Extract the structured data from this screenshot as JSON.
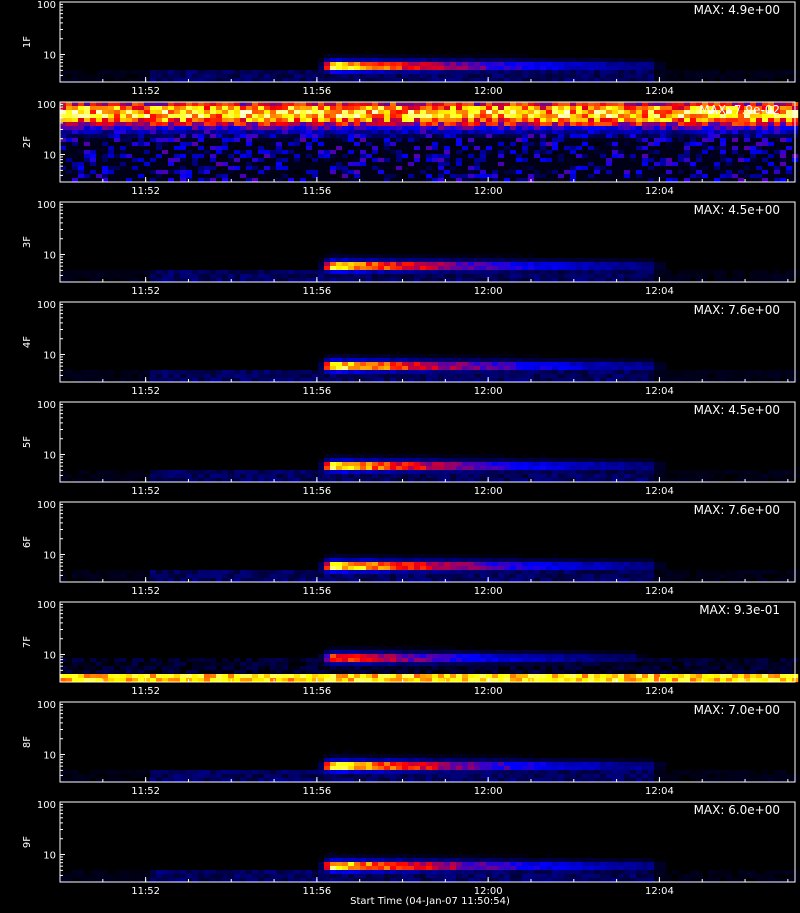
{
  "chart_data": [
    {
      "type": "heatmap",
      "ylabel": "1F",
      "max_label": "MAX: 4.9e+00",
      "xticks": [
        "11:52",
        "11:56",
        "12:00",
        "12:04"
      ],
      "yticks": [
        "10",
        "100"
      ],
      "ylim": [
        3,
        100
      ],
      "xlim": [
        "11:50:00",
        "12:07:10"
      ],
      "emission": {
        "profile": "flare",
        "onset": "11:56:00",
        "peak": "11:56:15",
        "end": "12:03:45",
        "y_center": 6,
        "peak_level": 4.9,
        "intensity_relative": 0.94
      },
      "background": {
        "mode": "quiet",
        "low_y": 3.2,
        "high_y": 5.5,
        "level": 0.04
      },
      "colors": [
        "#000000",
        "#0000ff",
        "#ff0000",
        "#ffff00",
        "#ffffff"
      ]
    },
    {
      "type": "heatmap",
      "ylabel": "2F",
      "max_label": "MAX: 7.9e-02",
      "xticks": [
        "11:52",
        "11:56",
        "12:00",
        "12:04"
      ],
      "yticks": [
        "10",
        "100"
      ],
      "ylim": [
        3,
        100
      ],
      "xlim": [
        "11:50:00",
        "12:07:10"
      ],
      "emission": {
        "profile": "uniform-high",
        "onset": "11:50:00",
        "peak": "11:50:00",
        "end": "12:07:10",
        "y_center": 60,
        "peak_level": 0.079,
        "intensity_relative": 0.78
      },
      "background": {
        "mode": "noisy-lower",
        "low_y": 3,
        "high_y": 30,
        "level": 0.28
      },
      "colors": [
        "#000000",
        "#0000ff",
        "#ff0000",
        "#ffff00",
        "#ffffff"
      ]
    },
    {
      "type": "heatmap",
      "ylabel": "3F",
      "max_label": "MAX: 4.5e+00",
      "xticks": [
        "11:52",
        "11:56",
        "12:00",
        "12:04"
      ],
      "yticks": [
        "10",
        "100"
      ],
      "ylim": [
        3,
        100
      ],
      "xlim": [
        "11:50:00",
        "12:07:10"
      ],
      "emission": {
        "profile": "flare",
        "onset": "11:56:00",
        "peak": "11:56:15",
        "end": "12:03:45",
        "y_center": 6,
        "peak_level": 4.5,
        "intensity_relative": 0.9
      },
      "background": {
        "mode": "quiet",
        "low_y": 3.2,
        "high_y": 5.5,
        "level": 0.04
      },
      "colors": [
        "#000000",
        "#0000ff",
        "#ff0000",
        "#ffff00",
        "#ffffff"
      ]
    },
    {
      "type": "heatmap",
      "ylabel": "4F",
      "max_label": "MAX: 7.6e+00",
      "xticks": [
        "11:52",
        "11:56",
        "12:00",
        "12:04"
      ],
      "yticks": [
        "10",
        "100"
      ],
      "ylim": [
        3,
        100
      ],
      "xlim": [
        "11:50:00",
        "12:07:10"
      ],
      "emission": {
        "profile": "flare",
        "onset": "11:56:00",
        "peak": "11:56:15",
        "end": "12:03:45",
        "y_center": 6,
        "peak_level": 7.6,
        "intensity_relative": 0.97
      },
      "background": {
        "mode": "quiet",
        "low_y": 3.2,
        "high_y": 5.5,
        "level": 0.04
      },
      "colors": [
        "#000000",
        "#0000ff",
        "#ff0000",
        "#ffff00",
        "#ffffff"
      ]
    },
    {
      "type": "heatmap",
      "ylabel": "5F",
      "max_label": "MAX: 4.5e+00",
      "xticks": [
        "11:52",
        "11:56",
        "12:00",
        "12:04"
      ],
      "yticks": [
        "10",
        "100"
      ],
      "ylim": [
        3,
        100
      ],
      "xlim": [
        "11:50:00",
        "12:07:10"
      ],
      "emission": {
        "profile": "flare",
        "onset": "11:56:00",
        "peak": "11:56:15",
        "end": "12:03:45",
        "y_center": 6,
        "peak_level": 4.5,
        "intensity_relative": 0.92
      },
      "background": {
        "mode": "quiet",
        "low_y": 3.2,
        "high_y": 5.5,
        "level": 0.04
      },
      "colors": [
        "#000000",
        "#0000ff",
        "#ff0000",
        "#ffff00",
        "#ffffff"
      ]
    },
    {
      "type": "heatmap",
      "ylabel": "6F",
      "max_label": "MAX: 7.6e+00",
      "xticks": [
        "11:52",
        "11:56",
        "12:00",
        "12:04"
      ],
      "yticks": [
        "10",
        "100"
      ],
      "ylim": [
        3,
        100
      ],
      "xlim": [
        "11:50:00",
        "12:07:10"
      ],
      "emission": {
        "profile": "flare",
        "onset": "11:56:00",
        "peak": "11:56:15",
        "end": "12:03:45",
        "y_center": 6,
        "peak_level": 7.6,
        "intensity_relative": 0.97
      },
      "background": {
        "mode": "quiet",
        "low_y": 3.2,
        "high_y": 5.5,
        "level": 0.04
      },
      "colors": [
        "#000000",
        "#0000ff",
        "#ff0000",
        "#ffff00",
        "#ffffff"
      ]
    },
    {
      "type": "heatmap",
      "ylabel": "7F",
      "max_label": "MAX: 9.3e-01",
      "xticks": [
        "11:52",
        "11:56",
        "12:00",
        "12:04"
      ],
      "yticks": [
        "10",
        "100"
      ],
      "ylim": [
        3,
        100
      ],
      "xlim": [
        "11:50:00",
        "12:07:10"
      ],
      "emission": {
        "profile": "flare",
        "onset": "11:56:00",
        "peak": "11:56:15",
        "end": "12:03:20",
        "y_center": 8.5,
        "peak_level": 0.93,
        "intensity_relative": 0.7
      },
      "background": {
        "mode": "bright-low-band",
        "low_y": 3,
        "high_y": 4,
        "level": 0.85
      },
      "colors": [
        "#000000",
        "#0000ff",
        "#ff0000",
        "#ffff00",
        "#ffffff"
      ]
    },
    {
      "type": "heatmap",
      "ylabel": "8F",
      "max_label": "MAX: 7.0e+00",
      "xticks": [
        "11:52",
        "11:56",
        "12:00",
        "12:04"
      ],
      "yticks": [
        "10",
        "100"
      ],
      "ylim": [
        3,
        100
      ],
      "xlim": [
        "11:50:00",
        "12:07:10"
      ],
      "emission": {
        "profile": "flare",
        "onset": "11:56:00",
        "peak": "11:56:15",
        "end": "12:03:45",
        "y_center": 6,
        "peak_level": 7.0,
        "intensity_relative": 0.96
      },
      "background": {
        "mode": "quiet",
        "low_y": 3.2,
        "high_y": 5.5,
        "level": 0.04
      },
      "colors": [
        "#000000",
        "#0000ff",
        "#ff0000",
        "#ffff00",
        "#ffffff"
      ]
    },
    {
      "type": "heatmap",
      "ylabel": "9F",
      "max_label": "MAX: 6.0e+00",
      "xticks": [
        "11:52",
        "11:56",
        "12:00",
        "12:04"
      ],
      "yticks": [
        "10",
        "100"
      ],
      "ylim": [
        3,
        100
      ],
      "xlim": [
        "11:50:00",
        "12:07:10"
      ],
      "emission": {
        "profile": "flare",
        "onset": "11:56:00",
        "peak": "11:56:15",
        "end": "12:03:45",
        "y_center": 6,
        "peak_level": 6.0,
        "intensity_relative": 0.95
      },
      "background": {
        "mode": "quiet",
        "low_y": 3.2,
        "high_y": 5.5,
        "level": 0.04
      },
      "colors": [
        "#000000",
        "#0000ff",
        "#ff0000",
        "#ffff00",
        "#ffffff"
      ]
    }
  ],
  "footer": {
    "text": "Start Time (04-Jan-07 11:50:54)"
  }
}
